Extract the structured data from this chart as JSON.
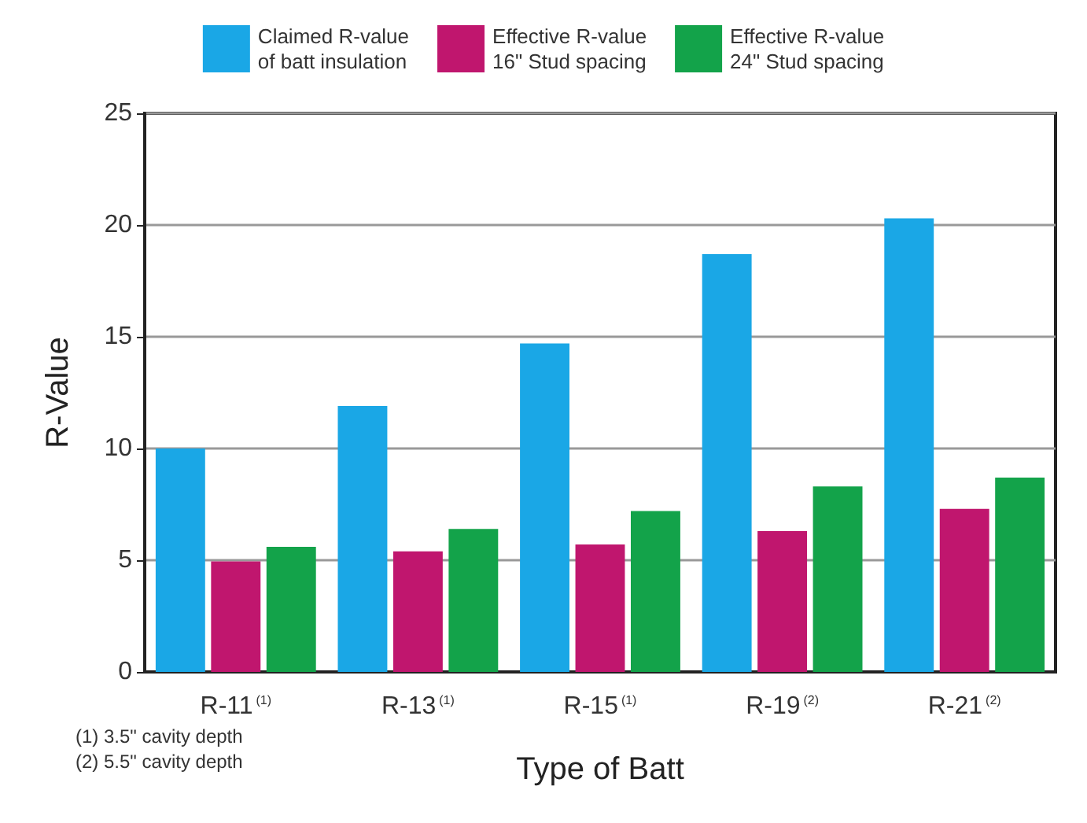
{
  "chart_data": {
    "type": "bar",
    "xlabel": "Type of Batt",
    "ylabel": "R-Value",
    "categories": [
      "R-11$^{(1)}$",
      "R-13$^{(1)}$",
      "R-15$^{(1)}$",
      "R-19$^{(2)}$",
      "R-21$^{(2)}$"
    ],
    "series": [
      {
        "name": "Claimed R-value\nof batt insulation",
        "color": "#1aa7e6",
        "values": [
          10,
          11.9,
          14.7,
          18.7,
          20.3
        ]
      },
      {
        "name": "Effective R-value\n16\" Stud spacing",
        "color": "#c0166e",
        "values": [
          4.95,
          5.4,
          5.7,
          6.3,
          7.3
        ]
      },
      {
        "name": "Effective R-value\n24\" Stud spacing",
        "color": "#13a34a",
        "values": [
          5.6,
          6.4,
          7.2,
          8.3,
          8.7
        ]
      }
    ],
    "ylim": [
      0,
      25
    ],
    "yticks": [
      0,
      5,
      10,
      15,
      20,
      25
    ],
    "grid": "y",
    "legend": "top",
    "annotations": [
      "(1) 3.5\" cavity depth\n(2) 5.5\" cavity depth"
    ]
  }
}
